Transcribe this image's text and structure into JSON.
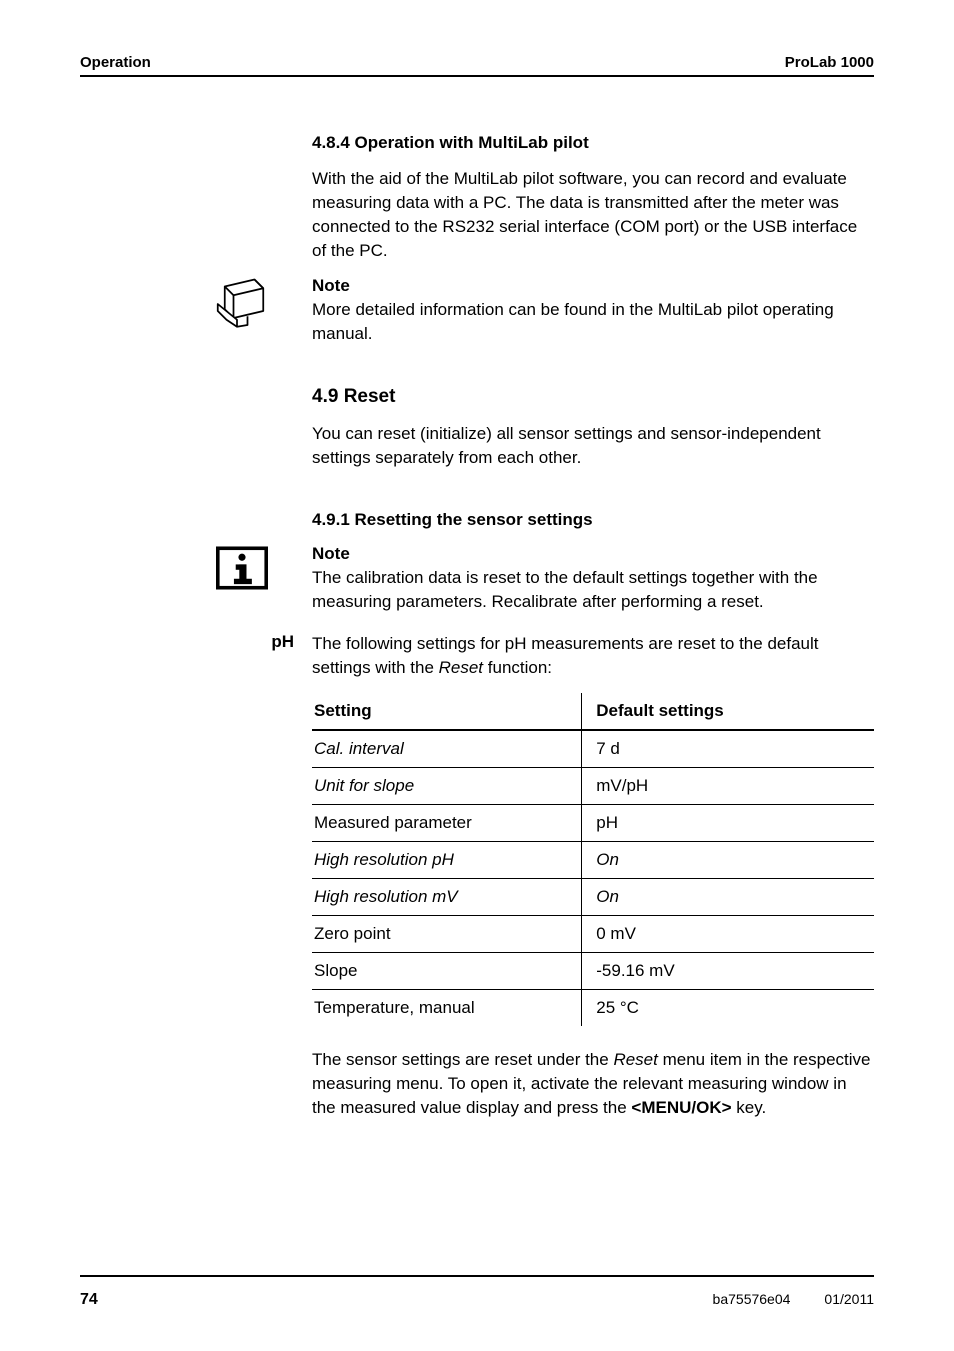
{
  "header": {
    "left": "Operation",
    "right": "ProLab 1000"
  },
  "s484": {
    "heading": "4.8.4   Operation with MultiLab pilot",
    "para": "With the aid of the MultiLab pilot software, you can record and evaluate measuring data with a PC. The data is transmitted after the meter was connected to the RS232 serial interface (COM port) or the USB interface of the PC.",
    "note_label": "Note",
    "note_body": "More detailed information can be found in the MultiLab pilot operating manual."
  },
  "s49": {
    "heading": "4.9      Reset",
    "para": "You can reset (initialize) all sensor settings and sensor-independent settings separately from each other."
  },
  "s491": {
    "heading": "4.9.1   Resetting the sensor settings",
    "note_label": "Note",
    "note_body": "The calibration data is reset to the default settings together with the measuring parameters. Recalibrate after performing a reset.",
    "margin_label": "pH",
    "intro_a": "The following settings for pH measurements are reset to the default settings with the ",
    "intro_reset": "Reset",
    "intro_b": " function:",
    "table": {
      "col1": "Setting",
      "col2": "Default settings",
      "rows": [
        {
          "k": "Cal. interval",
          "k_italic": true,
          "v": "7 d"
        },
        {
          "k": "Unit for slope",
          "k_italic": true,
          "v": "mV/pH"
        },
        {
          "k": "Measured parameter",
          "k_italic": false,
          "v": "pH"
        },
        {
          "k": "High resolution pH",
          "k_italic": true,
          "v": "On",
          "v_italic": true
        },
        {
          "k": "High resolution mV",
          "k_italic": true,
          "v": "On",
          "v_italic": true
        },
        {
          "k": "Zero point",
          "k_italic": false,
          "v": "0 mV"
        },
        {
          "k": "Slope",
          "k_italic": false,
          "v": "-59.16 mV"
        },
        {
          "k": "Temperature, manual",
          "k_italic": false,
          "v": "25 °C"
        }
      ]
    },
    "outro_a": "The sensor settings are reset under the ",
    "outro_reset": "Reset",
    "outro_b": " menu item in the respective measuring menu. To open it, activate the relevant measuring window in the measured value display and press the ",
    "outro_key": "<MENU/OK>",
    "outro_c": " key."
  },
  "footer": {
    "page": "74",
    "code": "ba75576e04",
    "date": "01/2011"
  },
  "colors": {
    "text": "#000000",
    "bg": "#ffffff",
    "rule": "#000000"
  }
}
